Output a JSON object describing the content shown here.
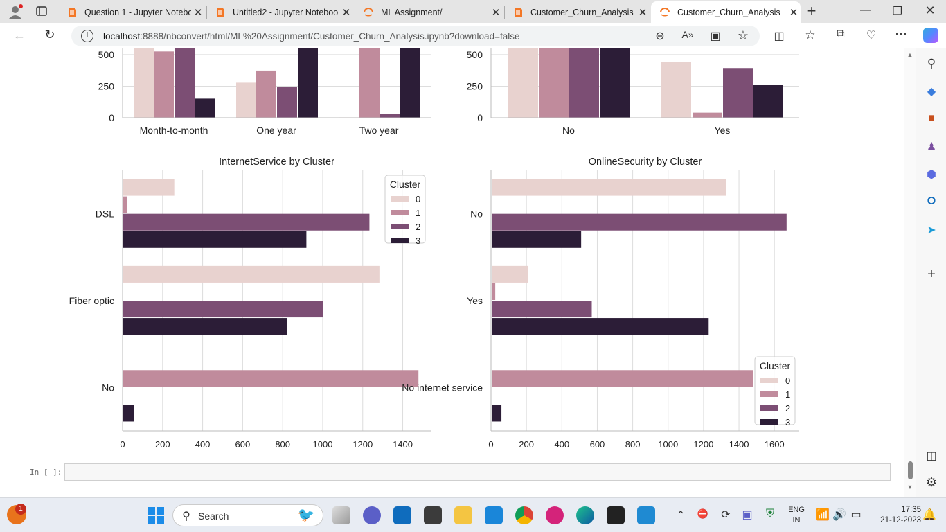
{
  "browser": {
    "tabs": [
      {
        "title": "Question 1 - Jupyter Notebo",
        "icon": "jupyter-icon",
        "active": false
      },
      {
        "title": "Untitled2 - Jupyter Noteboo",
        "icon": "jupyter-icon",
        "active": false
      },
      {
        "title": "ML Assignment/",
        "icon": "jupyter-loading-icon",
        "active": false
      },
      {
        "title": "Customer_Churn_Analysis - ",
        "icon": "jupyter-icon",
        "active": false
      },
      {
        "title": "Customer_Churn_Analysis",
        "icon": "jupyter-loading-icon",
        "active": true
      }
    ],
    "url_host": "localhost",
    "url_rest": ":8888/nbconvert/html/ML%20Assignment/Customer_Churn_Analysis.ipynb?download=false"
  },
  "colors": {
    "c0": "#e8d2cf",
    "c1": "#c08b9c",
    "c2": "#7c4e74",
    "c3": "#2c1d37"
  },
  "top_charts": {
    "left_categories": [
      "Month-to-month",
      "One year",
      "Two year"
    ],
    "right_categories": [
      "No",
      "Yes"
    ],
    "y_ticks": [
      "0",
      "250",
      "500"
    ]
  },
  "chart_data": [
    {
      "type": "bar",
      "title": "InternetService by Cluster",
      "orientation": "horizontal",
      "categories": [
        "DSL",
        "Fiber optic",
        "No"
      ],
      "series": [
        {
          "name": "0",
          "values": [
            255,
            1280,
            0
          ]
        },
        {
          "name": "1",
          "values": [
            20,
            0,
            1475
          ]
        },
        {
          "name": "2",
          "values": [
            1230,
            1000,
            0
          ]
        },
        {
          "name": "3",
          "values": [
            915,
            820,
            55
          ]
        }
      ],
      "x_ticks": [
        0,
        200,
        400,
        600,
        800,
        1000,
        1200,
        1400
      ],
      "xlim": [
        0,
        1540
      ],
      "legend_title": "Cluster",
      "legend_position": "top-right",
      "grid": "vertical"
    },
    {
      "type": "bar",
      "title": "OnlineSecurity by Cluster",
      "orientation": "horizontal",
      "categories": [
        "No",
        "Yes",
        "No internet service"
      ],
      "series": [
        {
          "name": "0",
          "values": [
            1325,
            205,
            0
          ]
        },
        {
          "name": "1",
          "values": [
            0,
            20,
            1475
          ]
        },
        {
          "name": "2",
          "values": [
            1665,
            565,
            0
          ]
        },
        {
          "name": "3",
          "values": [
            505,
            1225,
            55
          ]
        }
      ],
      "x_ticks": [
        0,
        200,
        400,
        600,
        800,
        1000,
        1200,
        1400,
        1600
      ],
      "xlim": [
        0,
        1740
      ],
      "legend_title": "Cluster",
      "legend_position": "bottom-right",
      "grid": "vertical"
    }
  ],
  "cell": {
    "prompt": "In [ ]:"
  },
  "taskbar": {
    "search_label": "Search",
    "lang_top": "ENG",
    "lang_bottom": "IN",
    "time": "17:35",
    "date": "21-12-2023",
    "notification_count": "1"
  }
}
